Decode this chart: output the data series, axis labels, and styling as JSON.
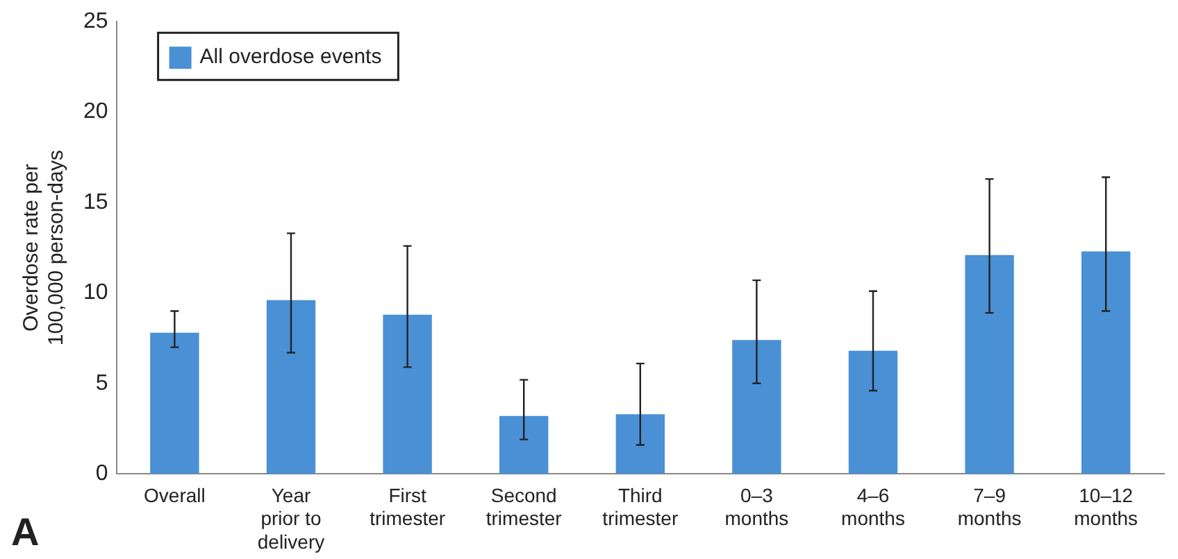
{
  "chart_data": {
    "type": "bar",
    "ylabel": "Overdose rate per\n100,000 person-days",
    "categories": [
      "Overall",
      "Year\nprior to\ndelivery",
      "First\ntrimester",
      "Second\ntrimester",
      "Third\ntrimester",
      "0–3\nmonths",
      "4–6\nmonths",
      "7–9\nmonths",
      "10–12\nmonths"
    ],
    "series": [
      {
        "name": "All overdose events",
        "color": "#4a90d4",
        "values": [
          7.8,
          9.6,
          8.8,
          3.2,
          3.3,
          7.4,
          6.8,
          12.1,
          12.3
        ],
        "errors": [
          [
            7.0,
            9.0
          ],
          [
            6.7,
            13.3
          ],
          [
            5.9,
            12.6
          ],
          [
            1.9,
            5.2
          ],
          [
            1.6,
            6.1
          ],
          [
            5.0,
            10.7
          ],
          [
            4.6,
            10.1
          ],
          [
            8.9,
            16.3
          ],
          [
            9.0,
            16.4
          ]
        ]
      }
    ],
    "ylim": [
      0,
      25
    ],
    "yticks": [
      0,
      5,
      10,
      15,
      20,
      25
    ],
    "grid": false,
    "legend": "top left",
    "annotations": [
      "A"
    ]
  }
}
